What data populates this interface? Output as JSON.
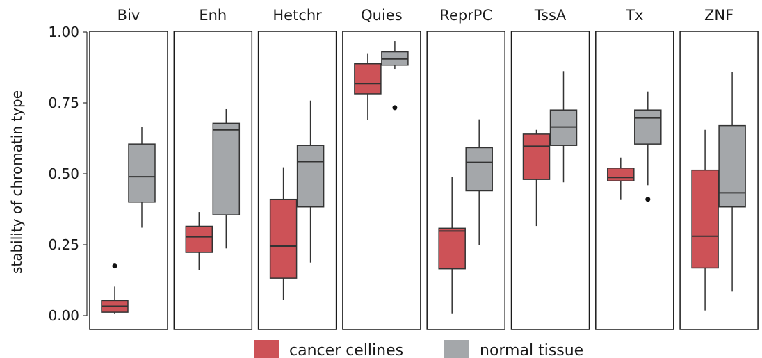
{
  "chart_data": {
    "type": "boxplot",
    "ylabel": "stability of chromatin type",
    "ylim": [
      0,
      1
    ],
    "yticks": [
      {
        "value": 0.0,
        "label": "0.00"
      },
      {
        "value": 0.25,
        "label": "0.25"
      },
      {
        "value": 0.5,
        "label": "0.50"
      },
      {
        "value": 0.75,
        "label": "0.75"
      },
      {
        "value": 1.0,
        "label": "1.00"
      }
    ],
    "series": [
      {
        "name": "cancer cellines",
        "color": "#cd5257"
      },
      {
        "name": "normal tissue",
        "color": "#a4a7aa"
      }
    ],
    "legend_position": "bottom",
    "facets": [
      {
        "label": "Biv",
        "boxes": [
          {
            "series": "cancer cellines",
            "whisker_low": 0.005,
            "q1": 0.012,
            "median": 0.033,
            "q3": 0.053,
            "whisker_high": 0.102,
            "outliers": [
              0.175
            ]
          },
          {
            "series": "normal tissue",
            "whisker_low": 0.31,
            "q1": 0.4,
            "median": 0.49,
            "q3": 0.605,
            "whisker_high": 0.665,
            "outliers": []
          }
        ]
      },
      {
        "label": "Enh",
        "boxes": [
          {
            "series": "cancer cellines",
            "whisker_low": 0.16,
            "q1": 0.223,
            "median": 0.278,
            "q3": 0.315,
            "whisker_high": 0.365,
            "outliers": []
          },
          {
            "series": "normal tissue",
            "whisker_low": 0.237,
            "q1": 0.355,
            "median": 0.655,
            "q3": 0.678,
            "whisker_high": 0.728,
            "outliers": []
          }
        ]
      },
      {
        "label": "Hetchr",
        "boxes": [
          {
            "series": "cancer cellines",
            "whisker_low": 0.055,
            "q1": 0.132,
            "median": 0.245,
            "q3": 0.41,
            "whisker_high": 0.523,
            "outliers": []
          },
          {
            "series": "normal tissue",
            "whisker_low": 0.187,
            "q1": 0.383,
            "median": 0.543,
            "q3": 0.6,
            "whisker_high": 0.758,
            "outliers": []
          }
        ]
      },
      {
        "label": "Quies",
        "boxes": [
          {
            "series": "cancer cellines",
            "whisker_low": 0.69,
            "q1": 0.782,
            "median": 0.818,
            "q3": 0.888,
            "whisker_high": 0.925,
            "outliers": []
          },
          {
            "series": "normal tissue",
            "whisker_low": 0.87,
            "q1": 0.883,
            "median": 0.905,
            "q3": 0.93,
            "whisker_high": 0.968,
            "outliers": [
              0.733
            ]
          }
        ]
      },
      {
        "label": "ReprPC",
        "boxes": [
          {
            "series": "cancer cellines",
            "whisker_low": 0.008,
            "q1": 0.165,
            "median": 0.298,
            "q3": 0.308,
            "whisker_high": 0.49,
            "outliers": []
          },
          {
            "series": "normal tissue",
            "whisker_low": 0.25,
            "q1": 0.44,
            "median": 0.54,
            "q3": 0.592,
            "whisker_high": 0.692,
            "outliers": []
          }
        ]
      },
      {
        "label": "TssA",
        "boxes": [
          {
            "series": "cancer cellines",
            "whisker_low": 0.316,
            "q1": 0.48,
            "median": 0.597,
            "q3": 0.64,
            "whisker_high": 0.655,
            "outliers": []
          },
          {
            "series": "normal tissue",
            "whisker_low": 0.47,
            "q1": 0.6,
            "median": 0.665,
            "q3": 0.725,
            "whisker_high": 0.862,
            "outliers": []
          }
        ]
      },
      {
        "label": "Tx",
        "boxes": [
          {
            "series": "cancer cellines",
            "whisker_low": 0.41,
            "q1": 0.475,
            "median": 0.487,
            "q3": 0.52,
            "whisker_high": 0.557,
            "outliers": []
          },
          {
            "series": "normal tissue",
            "whisker_low": 0.46,
            "q1": 0.605,
            "median": 0.697,
            "q3": 0.725,
            "whisker_high": 0.79,
            "outliers": [
              0.41
            ]
          }
        ]
      },
      {
        "label": "ZNF",
        "boxes": [
          {
            "series": "cancer cellines",
            "whisker_low": 0.018,
            "q1": 0.168,
            "median": 0.28,
            "q3": 0.513,
            "whisker_high": 0.655,
            "outliers": []
          },
          {
            "series": "normal tissue",
            "whisker_low": 0.085,
            "q1": 0.383,
            "median": 0.433,
            "q3": 0.67,
            "whisker_high": 0.86,
            "outliers": []
          }
        ]
      }
    ]
  }
}
